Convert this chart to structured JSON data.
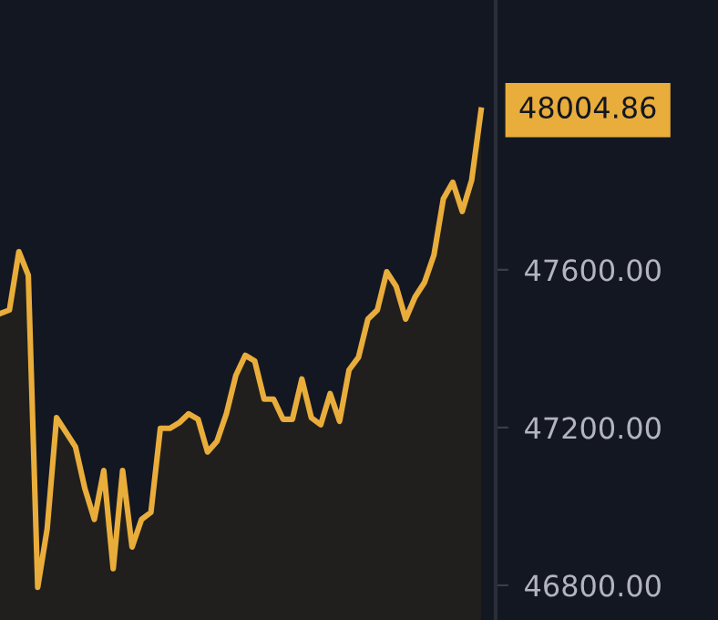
{
  "chart_data": {
    "type": "area",
    "categories": [
      null,
      null,
      null,
      null,
      null,
      null,
      null,
      null,
      null,
      null,
      null,
      null,
      null,
      null,
      null,
      null,
      null,
      null,
      null,
      null,
      null,
      null,
      null,
      null,
      null,
      null,
      null,
      null,
      null,
      null,
      null,
      null,
      null,
      null,
      null,
      null,
      null,
      null,
      null,
      null,
      null,
      null,
      null,
      null,
      null,
      null,
      null,
      null,
      null,
      null,
      null,
      null
    ],
    "series": [
      {
        "color": "#e9ad3b",
        "value_labels": [
          null,
          null,
          null,
          null,
          null,
          null,
          null,
          null,
          null,
          null,
          null,
          null,
          null,
          null,
          null,
          null,
          null,
          null,
          null,
          null,
          null,
          null,
          null,
          null,
          null,
          null,
          null,
          null,
          null,
          null,
          null,
          null,
          null,
          null,
          null,
          null,
          null,
          null,
          null,
          null,
          null,
          null,
          null,
          null,
          null,
          null,
          null,
          null,
          null,
          null,
          null,
          "48004.86"
        ],
        "values": [
          47489,
          47498,
          47646,
          47586,
          46795,
          46943,
          47225,
          47188,
          47151,
          47045,
          46967,
          47091,
          46842,
          47091,
          46897,
          46967,
          46985,
          47198,
          47198,
          47212,
          47235,
          47221,
          47138,
          47165,
          47235,
          47332,
          47383,
          47369,
          47272,
          47272,
          47221,
          47221,
          47323,
          47225,
          47207,
          47286,
          47216,
          47346,
          47378,
          47475,
          47498,
          47595,
          47558,
          47475,
          47531,
          47568,
          47637,
          47780,
          47822,
          47748,
          47827,
          48004.86
        ]
      }
    ],
    "ylim": [
      46712,
      48284
    ],
    "yticks": [
      {
        "value": 46800,
        "label": "46800.00"
      },
      {
        "value": 47200,
        "label": "47200.00"
      },
      {
        "value": 47600,
        "label": "47600.00"
      }
    ],
    "grid": false,
    "legend": false
  }
}
